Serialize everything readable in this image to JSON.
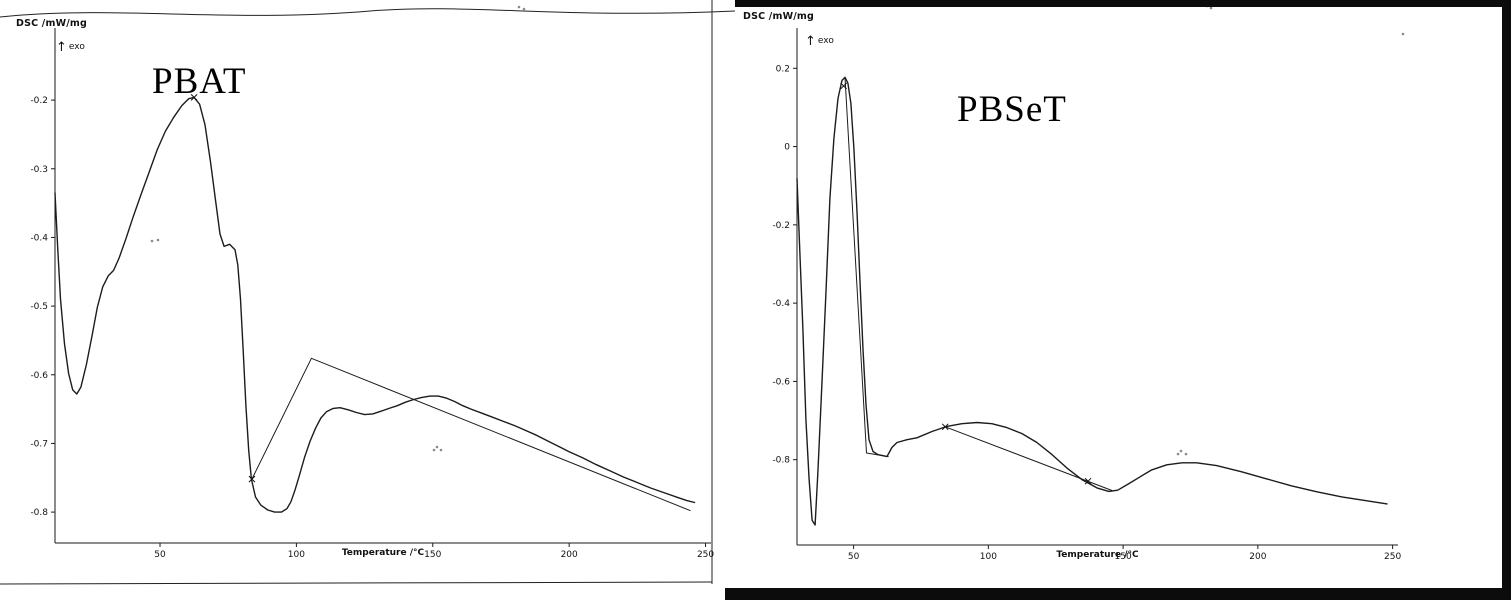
{
  "figure": {
    "description": "Two scanned DSC thermograms side by side",
    "exo_direction": "up"
  },
  "chart_data": [
    {
      "type": "line",
      "title": "PBAT",
      "ylabel": "DSC /mW/mg",
      "xlabel": "Temperature /°C",
      "exo_label": "exo",
      "xlim": [
        11.5,
        252
      ],
      "ylim": [
        -0.845,
        -0.095
      ],
      "xticks": [
        50,
        100,
        150,
        200,
        250
      ],
      "yticks": [
        -0.2,
        -0.3,
        -0.4,
        -0.5,
        -0.6,
        -0.7,
        -0.8
      ],
      "grid": false,
      "legend": "none",
      "series": [
        {
          "name": "dsc-curve",
          "class": "curve",
          "points": [
            [
              11.5,
              -0.335
            ],
            [
              12.5,
              -0.415
            ],
            [
              13.5,
              -0.49
            ],
            [
              15,
              -0.555
            ],
            [
              16.5,
              -0.598
            ],
            [
              18,
              -0.622
            ],
            [
              19.5,
              -0.628
            ],
            [
              21,
              -0.618
            ],
            [
              23,
              -0.585
            ],
            [
              25,
              -0.545
            ],
            [
              27,
              -0.502
            ],
            [
              29,
              -0.472
            ],
            [
              31,
              -0.456
            ],
            [
              33,
              -0.448
            ],
            [
              35,
              -0.43
            ],
            [
              37.5,
              -0.402
            ],
            [
              40,
              -0.372
            ],
            [
              43,
              -0.338
            ],
            [
              46,
              -0.305
            ],
            [
              49,
              -0.272
            ],
            [
              52,
              -0.245
            ],
            [
              55,
              -0.225
            ],
            [
              58,
              -0.208
            ],
            [
              60.5,
              -0.198
            ],
            [
              62.5,
              -0.196
            ],
            [
              64.5,
              -0.206
            ],
            [
              66.5,
              -0.236
            ],
            [
              68.5,
              -0.29
            ],
            [
              70.5,
              -0.35
            ],
            [
              72,
              -0.395
            ],
            [
              73.5,
              -0.413
            ],
            [
              75.5,
              -0.41
            ],
            [
              77.5,
              -0.418
            ],
            [
              78.5,
              -0.44
            ],
            [
              79.5,
              -0.49
            ],
            [
              80.5,
              -0.565
            ],
            [
              81.5,
              -0.645
            ],
            [
              82.5,
              -0.71
            ],
            [
              83.5,
              -0.752
            ],
            [
              85,
              -0.778
            ],
            [
              87,
              -0.79
            ],
            [
              89.5,
              -0.797
            ],
            [
              92,
              -0.8
            ],
            [
              94.5,
              -0.8
            ],
            [
              96.5,
              -0.795
            ],
            [
              98,
              -0.785
            ],
            [
              99.5,
              -0.768
            ],
            [
              101,
              -0.748
            ],
            [
              103,
              -0.72
            ],
            [
              105,
              -0.697
            ],
            [
              107,
              -0.678
            ],
            [
              109,
              -0.663
            ],
            [
              111,
              -0.654
            ],
            [
              113.5,
              -0.649
            ],
            [
              116,
              -0.648
            ],
            [
              119,
              -0.651
            ],
            [
              122,
              -0.655
            ],
            [
              125,
              -0.658
            ],
            [
              128,
              -0.657
            ],
            [
              131,
              -0.653
            ],
            [
              134,
              -0.649
            ],
            [
              137,
              -0.645
            ],
            [
              140,
              -0.64
            ],
            [
              143,
              -0.636
            ],
            [
              146,
              -0.633
            ],
            [
              149,
              -0.631
            ],
            [
              152,
              -0.631
            ],
            [
              155,
              -0.634
            ],
            [
              158,
              -0.639
            ],
            [
              161,
              -0.645
            ],
            [
              164,
              -0.65
            ],
            [
              168,
              -0.656
            ],
            [
              172,
              -0.662
            ],
            [
              176,
              -0.668
            ],
            [
              180,
              -0.674
            ],
            [
              184,
              -0.681
            ],
            [
              188,
              -0.688
            ],
            [
              192,
              -0.696
            ],
            [
              196,
              -0.704
            ],
            [
              200,
              -0.712
            ],
            [
              205,
              -0.721
            ],
            [
              210,
              -0.731
            ],
            [
              215,
              -0.74
            ],
            [
              220,
              -0.749
            ],
            [
              225,
              -0.757
            ],
            [
              230,
              -0.765
            ],
            [
              235,
              -0.772
            ],
            [
              240,
              -0.779
            ],
            [
              243,
              -0.783
            ],
            [
              246,
              -0.786
            ]
          ]
        },
        {
          "name": "integration-baseline",
          "class": "baseline",
          "points": [
            [
              83.7,
              -0.752
            ],
            [
              105.5,
              -0.576
            ],
            [
              244.5,
              -0.798
            ]
          ]
        }
      ],
      "markers": [
        {
          "x": 62.5,
          "y": -0.196
        },
        {
          "x": 83.7,
          "y": -0.752
        }
      ]
    },
    {
      "type": "line",
      "title": "PBSeT",
      "ylabel": "DSC /mW/mg",
      "xlabel": "Temperature /°C",
      "exo_label": "exo",
      "xlim": [
        29,
        252
      ],
      "ylim": [
        -1.018,
        0.303
      ],
      "xticks": [
        50,
        100,
        150,
        200,
        250
      ],
      "yticks": [
        0.2,
        0,
        -0.2,
        -0.4,
        -0.6,
        -0.8
      ],
      "grid": false,
      "legend": "none",
      "series": [
        {
          "name": "dsc-curve",
          "class": "curve",
          "points": [
            [
              29,
              -0.082
            ],
            [
              30,
              -0.26
            ],
            [
              31.2,
              -0.467
            ],
            [
              32.3,
              -0.697
            ],
            [
              33.5,
              -0.85
            ],
            [
              34.6,
              -0.955
            ],
            [
              35.7,
              -0.967
            ],
            [
              36.8,
              -0.826
            ],
            [
              38.3,
              -0.595
            ],
            [
              39.8,
              -0.364
            ],
            [
              41.2,
              -0.133
            ],
            [
              42.7,
              0.021
            ],
            [
              44.2,
              0.123
            ],
            [
              45.7,
              0.169
            ],
            [
              46.8,
              0.177
            ],
            [
              47.9,
              0.162
            ],
            [
              49,
              0.11
            ],
            [
              50.1,
              -0.005
            ],
            [
              51.3,
              -0.172
            ],
            [
              52.4,
              -0.351
            ],
            [
              53.5,
              -0.518
            ],
            [
              54.6,
              -0.659
            ],
            [
              55.7,
              -0.749
            ],
            [
              57.2,
              -0.779
            ],
            [
              59,
              -0.787
            ],
            [
              62.4,
              -0.792
            ],
            [
              64.2,
              -0.769
            ],
            [
              66.1,
              -0.756
            ],
            [
              69.8,
              -0.749
            ],
            [
              73.5,
              -0.744
            ],
            [
              79.1,
              -0.728
            ],
            [
              84.6,
              -0.715
            ],
            [
              90.2,
              -0.708
            ],
            [
              95.8,
              -0.705
            ],
            [
              101.3,
              -0.708
            ],
            [
              106.9,
              -0.718
            ],
            [
              112.4,
              -0.733
            ],
            [
              118,
              -0.756
            ],
            [
              123.6,
              -0.787
            ],
            [
              129.1,
              -0.821
            ],
            [
              134.7,
              -0.851
            ],
            [
              140.3,
              -0.872
            ],
            [
              144.7,
              -0.881
            ],
            [
              148,
              -0.878
            ],
            [
              152,
              -0.862
            ],
            [
              156,
              -0.845
            ],
            [
              160.6,
              -0.826
            ],
            [
              166.2,
              -0.813
            ],
            [
              171.8,
              -0.808
            ],
            [
              177.3,
              -0.808
            ],
            [
              184.7,
              -0.815
            ],
            [
              194,
              -0.831
            ],
            [
              203.3,
              -0.849
            ],
            [
              212.6,
              -0.867
            ],
            [
              221.9,
              -0.882
            ],
            [
              231.2,
              -0.895
            ],
            [
              240.5,
              -0.905
            ],
            [
              247.9,
              -0.913
            ]
          ]
        },
        {
          "name": "peak-tangent-baseline",
          "class": "baseline",
          "points": [
            [
              46.8,
              0.177
            ],
            [
              54.8,
              -0.783
            ],
            [
              63,
              -0.792
            ]
          ]
        },
        {
          "name": "integration-baseline",
          "class": "baseline",
          "points": [
            [
              84,
              -0.716
            ],
            [
              146,
              -0.879
            ]
          ]
        }
      ],
      "markers": [
        {
          "x": 46.3,
          "y": 0.155
        },
        {
          "x": 84,
          "y": -0.716
        },
        {
          "x": 137,
          "y": -0.855
        }
      ]
    }
  ]
}
